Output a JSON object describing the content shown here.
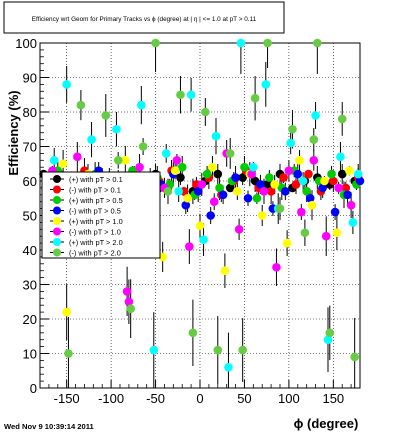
{
  "chart_data": {
    "type": "scatter",
    "title": "Efficiency wrt Geom for Primary Tracks vs ϕ (degree) at | η | <= 1.0 at pT > 0.11",
    "xlabel": "ϕ (degree)",
    "ylabel": "Efficiency (%)",
    "xlim": [
      -180,
      180
    ],
    "ylim": [
      0,
      100
    ],
    "x_ticks": [
      -150,
      -100,
      -50,
      0,
      50,
      100,
      150
    ],
    "y_ticks": [
      0,
      10,
      20,
      30,
      40,
      50,
      60,
      70,
      80,
      90,
      100
    ],
    "grid": true,
    "legend_position": "left",
    "series": [
      {
        "name": "(+) with pT > 0.1",
        "marker": "black",
        "points": [
          [
            -176,
            62
          ],
          [
            -162,
            60
          ],
          [
            -148,
            59
          ],
          [
            -134,
            61
          ],
          [
            -120,
            60
          ],
          [
            -106,
            58
          ],
          [
            -92,
            61
          ],
          [
            -78,
            60
          ],
          [
            -64,
            59
          ],
          [
            -50,
            62
          ],
          [
            -36,
            58
          ],
          [
            -22,
            61
          ],
          [
            -8,
            57
          ],
          [
            6,
            60
          ],
          [
            20,
            62
          ],
          [
            34,
            58
          ],
          [
            48,
            61
          ],
          [
            62,
            60
          ],
          [
            76,
            59
          ],
          [
            90,
            62
          ],
          [
            104,
            58
          ],
          [
            118,
            60
          ],
          [
            132,
            61
          ],
          [
            146,
            59
          ],
          [
            160,
            62
          ],
          [
            174,
            60
          ]
        ]
      },
      {
        "name": "(-) with pT > 0.1",
        "marker": "red",
        "points": [
          [
            -172,
            60
          ],
          [
            -158,
            62
          ],
          [
            -144,
            57
          ],
          [
            -130,
            63
          ],
          [
            -116,
            59
          ],
          [
            -102,
            61
          ],
          [
            -88,
            56
          ],
          [
            -74,
            62
          ],
          [
            -60,
            58
          ],
          [
            -46,
            60
          ],
          [
            -32,
            63
          ],
          [
            -18,
            57
          ],
          [
            -4,
            59
          ],
          [
            10,
            61
          ],
          [
            24,
            56
          ],
          [
            38,
            60
          ],
          [
            52,
            63
          ],
          [
            66,
            58
          ],
          [
            80,
            57
          ],
          [
            94,
            61
          ],
          [
            108,
            59
          ],
          [
            122,
            62
          ],
          [
            136,
            57
          ],
          [
            150,
            60
          ],
          [
            164,
            58
          ],
          [
            178,
            61
          ]
        ]
      },
      {
        "name": "(+) with pT > 0.5",
        "marker": "green",
        "points": [
          [
            -174,
            58
          ],
          [
            -160,
            63
          ],
          [
            -146,
            61
          ],
          [
            -132,
            57
          ],
          [
            -118,
            62
          ],
          [
            -104,
            56
          ],
          [
            -90,
            60
          ],
          [
            -76,
            63
          ],
          [
            -62,
            55
          ],
          [
            -48,
            61
          ],
          [
            -34,
            59
          ],
          [
            -20,
            64
          ],
          [
            -6,
            56
          ],
          [
            8,
            62
          ],
          [
            22,
            58
          ],
          [
            36,
            60
          ],
          [
            50,
            64
          ],
          [
            64,
            55
          ],
          [
            78,
            61
          ],
          [
            92,
            58
          ],
          [
            106,
            63
          ],
          [
            120,
            57
          ],
          [
            134,
            60
          ],
          [
            148,
            62
          ],
          [
            162,
            56
          ],
          [
            176,
            59
          ]
        ]
      },
      {
        "name": "(-) with pT > 0.5",
        "marker": "blue",
        "points": [
          [
            -170,
            57
          ],
          [
            -156,
            61
          ],
          [
            -142,
            55
          ],
          [
            -128,
            60
          ],
          [
            -114,
            63
          ],
          [
            -100,
            54
          ],
          [
            -86,
            58
          ],
          [
            -72,
            61
          ],
          [
            -58,
            52
          ],
          [
            -44,
            59
          ],
          [
            -30,
            62
          ],
          [
            -16,
            53
          ],
          [
            -2,
            57
          ],
          [
            12,
            50
          ],
          [
            26,
            56
          ],
          [
            40,
            61
          ],
          [
            54,
            55
          ],
          [
            68,
            59
          ],
          [
            82,
            52
          ],
          [
            96,
            57
          ],
          [
            110,
            62
          ],
          [
            124,
            55
          ],
          [
            138,
            58
          ],
          [
            152,
            51
          ],
          [
            166,
            56
          ],
          [
            180,
            60
          ]
        ]
      },
      {
        "name": "(+) with pT > 1.0",
        "marker": "yellow",
        "points": [
          [
            -168,
            55
          ],
          [
            -154,
            65
          ],
          [
            -140,
            48
          ],
          [
            -126,
            62
          ],
          [
            -112,
            58
          ],
          [
            -98,
            44
          ],
          [
            -84,
            66
          ],
          [
            -70,
            52
          ],
          [
            -56,
            61
          ],
          [
            -42,
            38
          ],
          [
            -28,
            63
          ],
          [
            -14,
            55
          ],
          [
            0,
            47
          ],
          [
            14,
            64
          ],
          [
            28,
            34
          ],
          [
            42,
            57
          ],
          [
            56,
            62
          ],
          [
            70,
            50
          ],
          [
            84,
            59
          ],
          [
            98,
            42
          ],
          [
            112,
            66
          ],
          [
            126,
            53
          ],
          [
            140,
            60
          ],
          [
            154,
            45
          ],
          [
            168,
            63
          ],
          [
            -150,
            22
          ]
        ]
      },
      {
        "name": "(-) with pT > 1.0",
        "marker": "magenta",
        "points": [
          [
            -166,
            63
          ],
          [
            -152,
            52
          ],
          [
            -138,
            67
          ],
          [
            -124,
            45
          ],
          [
            -110,
            61
          ],
          [
            -96,
            56
          ],
          [
            -82,
            28
          ],
          [
            -68,
            64
          ],
          [
            -54,
            49
          ],
          [
            -40,
            58
          ],
          [
            -26,
            66
          ],
          [
            -12,
            41
          ],
          [
            2,
            59
          ],
          [
            16,
            54
          ],
          [
            30,
            68
          ],
          [
            44,
            46
          ],
          [
            58,
            62
          ],
          [
            72,
            57
          ],
          [
            86,
            35
          ],
          [
            100,
            63
          ],
          [
            114,
            51
          ],
          [
            128,
            66
          ],
          [
            142,
            44
          ],
          [
            156,
            58
          ],
          [
            170,
            53
          ],
          [
            -80,
            25
          ]
        ]
      },
      {
        "name": "(+) with pT > 2.0",
        "marker": "cyan",
        "points": [
          [
            -164,
            66
          ],
          [
            -150,
            88
          ],
          [
            -136,
            47
          ],
          [
            -122,
            72
          ],
          [
            -108,
            58
          ],
          [
            -94,
            75
          ],
          [
            -80,
            52
          ],
          [
            -66,
            82
          ],
          [
            -52,
            11
          ],
          [
            -38,
            68
          ],
          [
            -24,
            57
          ],
          [
            -10,
            85
          ],
          [
            4,
            43
          ],
          [
            18,
            73
          ],
          [
            32,
            6
          ],
          [
            46,
            100
          ],
          [
            60,
            64
          ],
          [
            74,
            88
          ],
          [
            88,
            52
          ],
          [
            102,
            71
          ],
          [
            116,
            60
          ],
          [
            130,
            79
          ],
          [
            144,
            14
          ],
          [
            158,
            67
          ],
          [
            172,
            48
          ],
          [
            178,
            62
          ]
        ]
      },
      {
        "name": "(-) with pT > 2.0",
        "marker": "lightgreen",
        "points": [
          [
            -162,
            60
          ],
          [
            -148,
            10
          ],
          [
            -134,
            82
          ],
          [
            -120,
            54
          ],
          [
            -106,
            79
          ],
          [
            -92,
            66
          ],
          [
            -78,
            23
          ],
          [
            -64,
            70
          ],
          [
            -50,
            100
          ],
          [
            -36,
            57
          ],
          [
            -22,
            85
          ],
          [
            -8,
            16
          ],
          [
            6,
            80
          ],
          [
            20,
            11
          ],
          [
            34,
            68
          ],
          [
            48,
            11
          ],
          [
            62,
            84
          ],
          [
            76,
            100
          ],
          [
            90,
            52
          ],
          [
            104,
            75
          ],
          [
            118,
            45
          ],
          [
            132,
            100
          ],
          [
            146,
            16
          ],
          [
            160,
            78
          ],
          [
            174,
            9
          ],
          [
            128,
            72
          ]
        ]
      }
    ]
  },
  "footer": {
    "timestamp": "Wed Nov  9 10:39:14 2011"
  }
}
